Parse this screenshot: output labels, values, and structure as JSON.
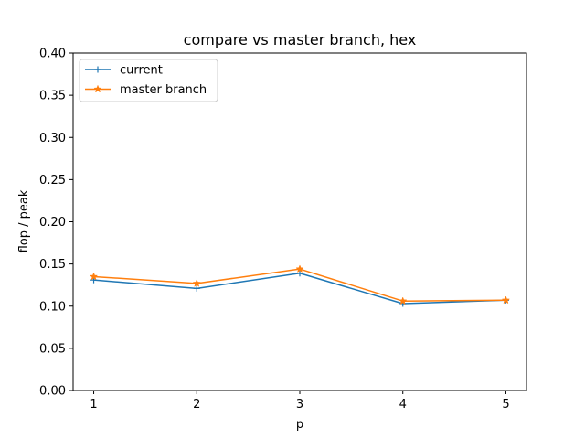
{
  "chart_data": {
    "type": "line",
    "title": "compare vs master branch, hex",
    "xlabel": "p",
    "ylabel": "flop / peak",
    "x": [
      1,
      2,
      3,
      4,
      5
    ],
    "xticks": [
      "1",
      "2",
      "3",
      "4",
      "5"
    ],
    "ylim": [
      0.0,
      0.4
    ],
    "yticks": [
      "0.00",
      "0.05",
      "0.10",
      "0.15",
      "0.20",
      "0.25",
      "0.30",
      "0.35",
      "0.40"
    ],
    "grid": false,
    "legend_position": "upper-left",
    "series": [
      {
        "name": "current",
        "values": [
          0.131,
          0.121,
          0.139,
          0.103,
          0.107
        ],
        "color": "#1f77b4",
        "marker": "plus"
      },
      {
        "name": "master branch",
        "values": [
          0.135,
          0.127,
          0.144,
          0.106,
          0.107
        ],
        "color": "#ff7f0e",
        "marker": "star"
      }
    ]
  }
}
